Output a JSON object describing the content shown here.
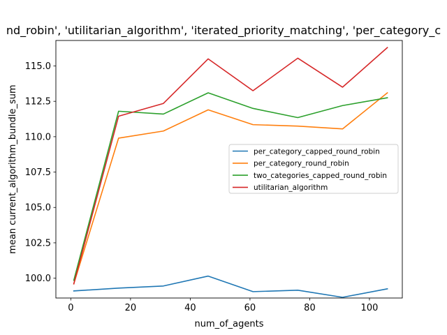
{
  "chart_data": {
    "type": "line",
    "title": "nd_robin', 'utilitarian_algorithm', 'iterated_priority_matching', 'per_category_c",
    "xlabel": "num_of_agents",
    "ylabel": "mean current_algorithm_bundle_sum",
    "xlim": [
      -5,
      111
    ],
    "ylim": [
      98.6,
      116.8
    ],
    "xticks": [
      0,
      20,
      40,
      60,
      80,
      100
    ],
    "yticks": [
      100.0,
      102.5,
      105.0,
      107.5,
      110.0,
      112.5,
      115.0
    ],
    "ytick_labels": [
      "100.0",
      "102.5",
      "105.0",
      "107.5",
      "110.0",
      "112.5",
      "115.0"
    ],
    "xtick_labels": [
      "0",
      "20",
      "40",
      "60",
      "80",
      "100"
    ],
    "x": [
      1,
      16,
      31,
      46,
      61,
      76,
      91,
      106
    ],
    "legend_position": "center-right",
    "grid": false,
    "series": [
      {
        "name": "per_category_capped_round_robin",
        "color": "#1f77b4",
        "values": [
          99.1,
          99.3,
          99.45,
          100.15,
          99.05,
          99.15,
          98.65,
          99.25
        ]
      },
      {
        "name": "per_category_round_robin",
        "color": "#ff7f0e",
        "values": [
          99.6,
          109.9,
          110.4,
          111.9,
          110.85,
          110.75,
          110.55,
          113.1
        ]
      },
      {
        "name": "two_categories_capped_round_robin",
        "color": "#2ca02c",
        "values": [
          99.85,
          111.8,
          111.6,
          113.1,
          112.0,
          111.35,
          112.2,
          112.75
        ]
      },
      {
        "name": "utilitarian_algorithm",
        "color": "#d62728",
        "values": [
          99.6,
          111.45,
          112.35,
          115.5,
          113.25,
          115.55,
          113.5,
          116.3
        ]
      }
    ]
  }
}
